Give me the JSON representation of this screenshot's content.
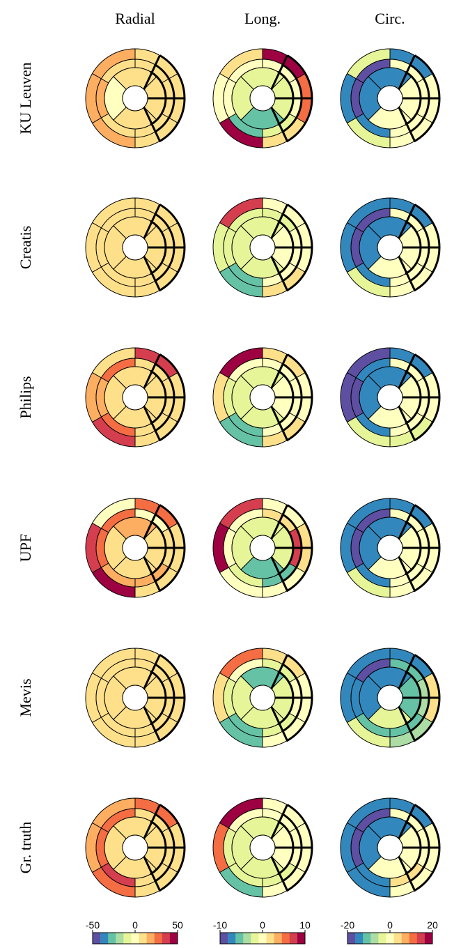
{
  "chart_data": {
    "type": "heatmap",
    "title": "",
    "columns": [
      "Radial",
      "Long.",
      "Circ."
    ],
    "rows": [
      "KU Leuven",
      "Creatis",
      "Philips",
      "UPF",
      "Mevis",
      "Gr. truth"
    ],
    "colorbars": [
      {
        "column": "Radial",
        "ticks": [
          "-50",
          "0",
          "50"
        ],
        "range": [
          -50,
          50
        ]
      },
      {
        "column": "Long.",
        "ticks": [
          "-10",
          "0",
          "10"
        ],
        "range": [
          -10,
          10
        ]
      },
      {
        "column": "Circ.",
        "ticks": [
          "-20",
          "0",
          "20"
        ],
        "range": [
          -20,
          20
        ]
      }
    ],
    "colormap": [
      "#5e4fa2",
      "#3288bd",
      "#66c2a5",
      "#abdda4",
      "#e6f598",
      "#ffffbf",
      "#fee08b",
      "#fdae61",
      "#f46d43",
      "#d53e4f",
      "#9e0142"
    ],
    "segment_layout": "AHA 17-segment bullseye per plot: 6 basal (outer ring), 6 mid, 4 apical, 1 apex; segments listed clockwise from the top-left sector of each ring",
    "values": {
      "KU Leuven": {
        "Radial": [
          15,
          10,
          5,
          5,
          18,
          15,
          8,
          5,
          5,
          5,
          10,
          15,
          5,
          5,
          5,
          0,
          5
        ],
        "Long.": [
          2.5,
          10,
          5,
          2.5,
          9,
          0,
          0,
          0,
          0,
          -2.5,
          -5,
          0,
          -2.5,
          -2.5,
          -5,
          -2.5,
          -2.5
        ],
        "Circ.": [
          -5,
          -15,
          0,
          0,
          -5,
          -15,
          -20,
          0,
          0,
          0,
          -15,
          -20,
          -15,
          0,
          0,
          -15,
          -15
        ]
      },
      "Creatis": {
        "Radial": [
          5,
          5,
          10,
          10,
          10,
          5,
          5,
          5,
          5,
          10,
          5,
          10,
          5,
          5,
          5,
          5,
          5
        ],
        "Long.": [
          7,
          0,
          0,
          2.5,
          -5,
          -2.5,
          -2.5,
          -2.5,
          0,
          0,
          -5,
          -2.5,
          -2.5,
          0,
          -2.5,
          -2.5,
          -2.5
        ],
        "Circ.": [
          -15,
          -15,
          0,
          0,
          -5,
          -15,
          -20,
          0,
          0,
          0,
          -15,
          -20,
          -15,
          0,
          0,
          -15,
          -15
        ]
      },
      "Philips": {
        "Radial": [
          12,
          35,
          5,
          10,
          35,
          15,
          30,
          5,
          5,
          10,
          30,
          22,
          10,
          5,
          5,
          10,
          5
        ],
        "Long.": [
          9,
          2.5,
          0,
          2.5,
          -5,
          2.5,
          0,
          0,
          0,
          0,
          -5,
          -2.5,
          -2.5,
          0,
          -2.5,
          -2.5,
          -2.5
        ],
        "Circ.": [
          -20,
          -15,
          0,
          -2.5,
          -5,
          -20,
          -15,
          0,
          0,
          0,
          -15,
          -20,
          -15,
          0,
          0,
          -15,
          -15
        ]
      },
      "UPF": {
        "Radial": [
          2.5,
          30,
          5,
          10,
          45,
          35,
          30,
          0,
          5,
          15,
          20,
          25,
          15,
          5,
          5,
          10,
          5
        ],
        "Long.": [
          7,
          0,
          2.5,
          0,
          0,
          9,
          0,
          2.5,
          7,
          -5,
          -2.5,
          0,
          -2.5,
          -2.5,
          -5,
          -2.5,
          -2.5
        ],
        "Circ.": [
          -15,
          -15,
          0,
          0,
          -5,
          -15,
          -20,
          0,
          0,
          0,
          -15,
          -20,
          -15,
          0,
          0,
          -15,
          -15
        ]
      },
      "Mevis": {
        "Radial": [
          5,
          5,
          10,
          10,
          10,
          5,
          5,
          5,
          5,
          10,
          5,
          10,
          5,
          5,
          5,
          5,
          5
        ],
        "Long.": [
          5,
          2.5,
          0,
          0,
          -5,
          2.5,
          0,
          -2.5,
          0,
          -2.5,
          -5,
          -2.5,
          -5,
          -2.5,
          -2.5,
          -2.5,
          -2.5
        ],
        "Circ.": [
          -15,
          -15,
          5,
          -7,
          -5,
          -15,
          -20,
          -10,
          -7,
          -10,
          -10,
          -15,
          -15,
          -10,
          -3,
          -15,
          -15
        ]
      },
      "Gr. truth": {
        "Radial": [
          15,
          30,
          5,
          5,
          30,
          20,
          30,
          5,
          5,
          5,
          38,
          30,
          5,
          5,
          5,
          5,
          5
        ],
        "Long.": [
          10,
          0,
          0,
          0,
          -5,
          5,
          0,
          0,
          0,
          -2.5,
          -2.5,
          -2.5,
          -2.5,
          0,
          -2.5,
          -2.5,
          -2.5
        ],
        "Circ.": [
          -15,
          -15,
          0,
          0,
          -15,
          -15,
          -20,
          0,
          0,
          5,
          -15,
          -20,
          -15,
          0,
          0,
          -15,
          -15
        ]
      }
    }
  }
}
